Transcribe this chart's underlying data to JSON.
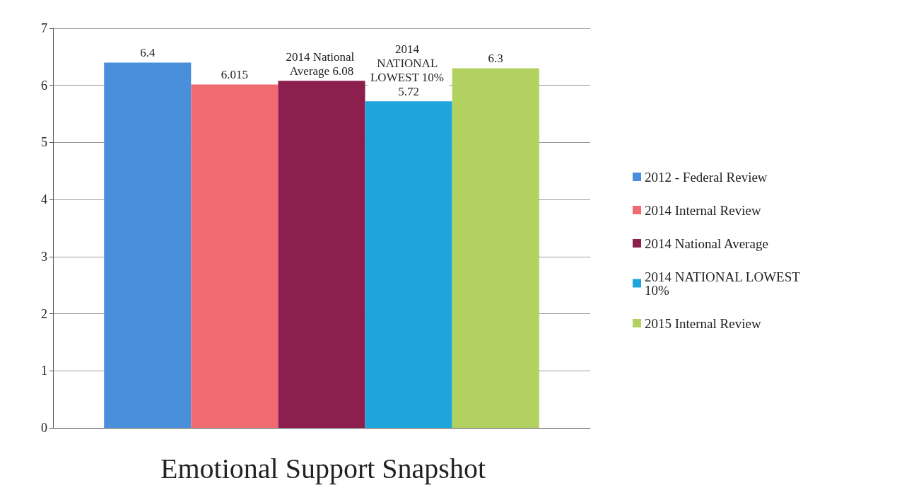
{
  "chart_data": {
    "type": "bar",
    "title": "Emotional Support Snapshot",
    "categories": [
      null
    ],
    "series": [
      {
        "name": "2012 - Federal Review",
        "color": "#4a8fdc",
        "values": [
          6.4
        ],
        "value_labels": [
          "6.4"
        ]
      },
      {
        "name": "2014 Internal Review",
        "color": "#f06a72",
        "values": [
          6.015
        ],
        "value_labels": [
          "6.015"
        ]
      },
      {
        "name": "2014 National Average",
        "color": "#8c1f4e",
        "values": [
          6.08
        ],
        "value_labels": [
          "2014 National Average 6.08"
        ]
      },
      {
        "name": "2014 NATIONAL LOWEST 10%",
        "color": "#1ea6dc",
        "values": [
          5.72
        ],
        "value_labels": [
          "2014 NATIONAL LOWEST 10% 5.72"
        ]
      },
      {
        "name": "2015 Internal Review",
        "color": "#b3d160",
        "values": [
          6.3
        ],
        "value_labels": [
          "6.3"
        ]
      }
    ],
    "ylim": [
      0,
      7
    ],
    "yticks": [
      0,
      1,
      2,
      3,
      4,
      5,
      6,
      7
    ],
    "grid": "y",
    "legend": "right"
  }
}
